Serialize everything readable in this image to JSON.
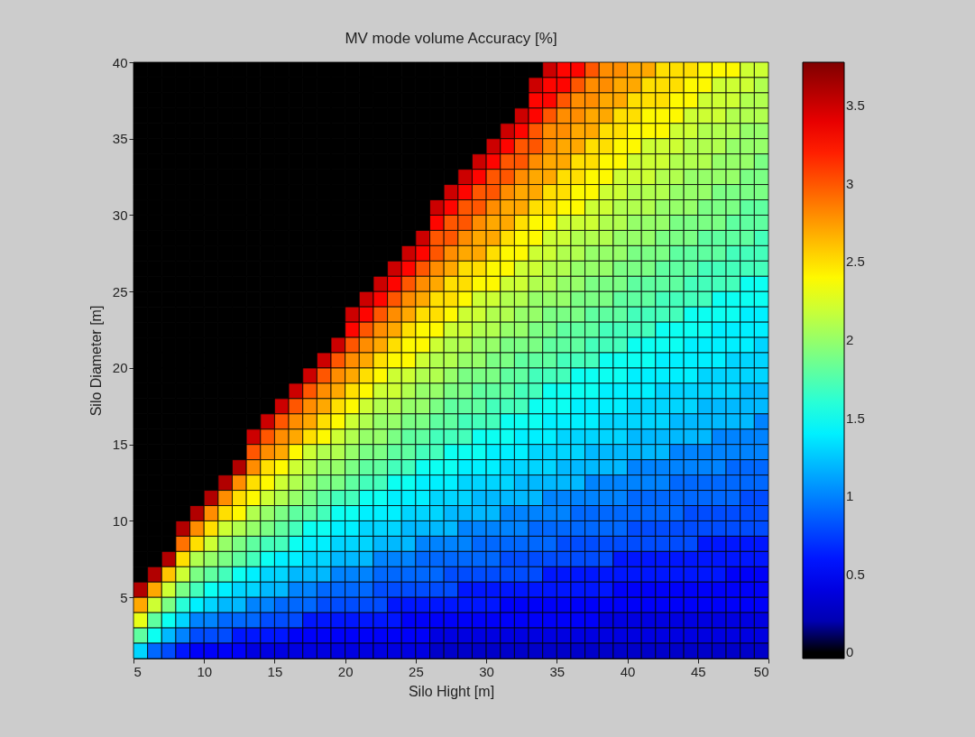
{
  "chart_data": {
    "type": "heatmap",
    "title": "MV mode volume Accuracy [%]",
    "xlabel": "Silo Hight [m]",
    "ylabel": "Silo Diameter [m]",
    "xlim": [
      5,
      50
    ],
    "ylim": [
      1,
      40
    ],
    "xticks": [
      5,
      10,
      15,
      20,
      25,
      30,
      35,
      40,
      45,
      50
    ],
    "yticks": [
      5,
      10,
      15,
      20,
      25,
      30,
      35,
      40
    ],
    "clim": [
      -0.04,
      3.78
    ],
    "cticks": [
      0,
      0.5,
      1,
      1.5,
      2,
      2.5,
      3,
      3.5
    ],
    "cells": [
      [
        0,
        0,
        0,
        0,
        0,
        0,
        0,
        0,
        0,
        0,
        0,
        0,
        0,
        0,
        0,
        0,
        0,
        0,
        0,
        0,
        0,
        0,
        0,
        0,
        0,
        0,
        0,
        0,
        0,
        3.5,
        3.3,
        3.3,
        3.0,
        2.8,
        2.8,
        2.7,
        2.7,
        2.5,
        2.5,
        2.5,
        2.4,
        2.4,
        2.4,
        2.2,
        2.2
      ],
      [
        0,
        0,
        0,
        0,
        0,
        0,
        0,
        0,
        0,
        0,
        0,
        0,
        0,
        0,
        0,
        0,
        0,
        0,
        0,
        0,
        0,
        0,
        0,
        0,
        0,
        0,
        0,
        0,
        3.5,
        3.3,
        3.3,
        3.0,
        2.8,
        2.8,
        2.7,
        2.7,
        2.5,
        2.5,
        2.5,
        2.4,
        2.4,
        2.2,
        2.2,
        2.2,
        2.1
      ],
      [
        0,
        0,
        0,
        0,
        0,
        0,
        0,
        0,
        0,
        0,
        0,
        0,
        0,
        0,
        0,
        0,
        0,
        0,
        0,
        0,
        0,
        0,
        0,
        0,
        0,
        0,
        0,
        0,
        3.3,
        3.3,
        3.0,
        2.8,
        2.8,
        2.7,
        2.7,
        2.5,
        2.5,
        2.5,
        2.4,
        2.4,
        2.2,
        2.2,
        2.2,
        2.1,
        2.1
      ],
      [
        0,
        0,
        0,
        0,
        0,
        0,
        0,
        0,
        0,
        0,
        0,
        0,
        0,
        0,
        0,
        0,
        0,
        0,
        0,
        0,
        0,
        0,
        0,
        0,
        0,
        0,
        0,
        3.5,
        3.3,
        3.0,
        2.8,
        2.8,
        2.7,
        2.7,
        2.5,
        2.5,
        2.4,
        2.4,
        2.4,
        2.2,
        2.2,
        2.2,
        2.1,
        2.1,
        2.1
      ],
      [
        0,
        0,
        0,
        0,
        0,
        0,
        0,
        0,
        0,
        0,
        0,
        0,
        0,
        0,
        0,
        0,
        0,
        0,
        0,
        0,
        0,
        0,
        0,
        0,
        0,
        0,
        3.5,
        3.3,
        3.0,
        2.8,
        2.8,
        2.7,
        2.7,
        2.5,
        2.5,
        2.4,
        2.4,
        2.4,
        2.2,
        2.2,
        2.1,
        2.1,
        2.1,
        2.0,
        2.0
      ],
      [
        0,
        0,
        0,
        0,
        0,
        0,
        0,
        0,
        0,
        0,
        0,
        0,
        0,
        0,
        0,
        0,
        0,
        0,
        0,
        0,
        0,
        0,
        0,
        0,
        0,
        3.5,
        3.3,
        3.0,
        3.0,
        2.8,
        2.7,
        2.7,
        2.5,
        2.5,
        2.4,
        2.4,
        2.2,
        2.2,
        2.2,
        2.1,
        2.1,
        2.1,
        2.0,
        2.0,
        2.0
      ],
      [
        0,
        0,
        0,
        0,
        0,
        0,
        0,
        0,
        0,
        0,
        0,
        0,
        0,
        0,
        0,
        0,
        0,
        0,
        0,
        0,
        0,
        0,
        0,
        0,
        3.5,
        3.3,
        3.0,
        3.0,
        2.8,
        2.7,
        2.7,
        2.5,
        2.5,
        2.4,
        2.4,
        2.2,
        2.2,
        2.2,
        2.1,
        2.1,
        2.1,
        2.0,
        2.0,
        2.0,
        1.9
      ],
      [
        0,
        0,
        0,
        0,
        0,
        0,
        0,
        0,
        0,
        0,
        0,
        0,
        0,
        0,
        0,
        0,
        0,
        0,
        0,
        0,
        0,
        0,
        0,
        3.5,
        3.3,
        3.0,
        3.0,
        2.8,
        2.7,
        2.7,
        2.5,
        2.5,
        2.4,
        2.4,
        2.2,
        2.2,
        2.2,
        2.1,
        2.1,
        2.0,
        2.0,
        2.0,
        2.0,
        1.9,
        1.9
      ],
      [
        0,
        0,
        0,
        0,
        0,
        0,
        0,
        0,
        0,
        0,
        0,
        0,
        0,
        0,
        0,
        0,
        0,
        0,
        0,
        0,
        0,
        0,
        3.5,
        3.3,
        3.0,
        3.0,
        2.8,
        2.7,
        2.7,
        2.5,
        2.5,
        2.4,
        2.4,
        2.2,
        2.2,
        2.1,
        2.1,
        2.1,
        2.0,
        2.0,
        2.0,
        1.9,
        1.9,
        1.9,
        1.9
      ],
      [
        0,
        0,
        0,
        0,
        0,
        0,
        0,
        0,
        0,
        0,
        0,
        0,
        0,
        0,
        0,
        0,
        0,
        0,
        0,
        0,
        0,
        3.5,
        3.3,
        3.0,
        3.0,
        2.8,
        2.7,
        2.7,
        2.5,
        2.5,
        2.4,
        2.4,
        2.2,
        2.2,
        2.1,
        2.1,
        2.1,
        2.0,
        2.0,
        2.0,
        1.9,
        1.9,
        1.9,
        1.8,
        1.8
      ],
      [
        0,
        0,
        0,
        0,
        0,
        0,
        0,
        0,
        0,
        0,
        0,
        0,
        0,
        0,
        0,
        0,
        0,
        0,
        0,
        0,
        0,
        3.3,
        3.0,
        3.0,
        2.8,
        2.7,
        2.7,
        2.5,
        2.4,
        2.4,
        2.2,
        2.2,
        2.2,
        2.1,
        2.1,
        2.0,
        2.0,
        2.0,
        1.9,
        1.9,
        1.9,
        1.9,
        1.8,
        1.8,
        1.8
      ],
      [
        0,
        0,
        0,
        0,
        0,
        0,
        0,
        0,
        0,
        0,
        0,
        0,
        0,
        0,
        0,
        0,
        0,
        0,
        0,
        0,
        3.5,
        3.0,
        3.0,
        2.8,
        2.7,
        2.7,
        2.5,
        2.4,
        2.4,
        2.2,
        2.2,
        2.1,
        2.1,
        2.1,
        2.0,
        2.0,
        2.0,
        1.9,
        1.9,
        1.9,
        1.8,
        1.8,
        1.8,
        1.8,
        1.7
      ],
      [
        0,
        0,
        0,
        0,
        0,
        0,
        0,
        0,
        0,
        0,
        0,
        0,
        0,
        0,
        0,
        0,
        0,
        0,
        0,
        3.5,
        3.3,
        3.0,
        2.8,
        2.7,
        2.7,
        2.5,
        2.4,
        2.4,
        2.2,
        2.2,
        2.1,
        2.1,
        2.0,
        2.0,
        2.0,
        1.9,
        1.9,
        1.9,
        1.8,
        1.8,
        1.8,
        1.8,
        1.7,
        1.7,
        1.7
      ],
      [
        0,
        0,
        0,
        0,
        0,
        0,
        0,
        0,
        0,
        0,
        0,
        0,
        0,
        0,
        0,
        0,
        0,
        0,
        3.5,
        3.3,
        3.0,
        2.8,
        2.7,
        2.5,
        2.5,
        2.4,
        2.4,
        2.2,
        2.2,
        2.1,
        2.1,
        2.0,
        2.0,
        2.0,
        1.9,
        1.9,
        1.9,
        1.8,
        1.8,
        1.8,
        1.7,
        1.7,
        1.7,
        1.7,
        1.7
      ],
      [
        0,
        0,
        0,
        0,
        0,
        0,
        0,
        0,
        0,
        0,
        0,
        0,
        0,
        0,
        0,
        0,
        0,
        3.5,
        3.3,
        3.0,
        2.8,
        2.7,
        2.5,
        2.5,
        2.4,
        2.4,
        2.2,
        2.2,
        2.1,
        2.1,
        2.0,
        2.0,
        1.9,
        1.9,
        1.9,
        1.8,
        1.8,
        1.8,
        1.8,
        1.7,
        1.7,
        1.7,
        1.7,
        1.5,
        1.5
      ],
      [
        0,
        0,
        0,
        0,
        0,
        0,
        0,
        0,
        0,
        0,
        0,
        0,
        0,
        0,
        0,
        0,
        3.5,
        3.3,
        3.0,
        2.8,
        2.7,
        2.5,
        2.5,
        2.4,
        2.2,
        2.2,
        2.1,
        2.1,
        2.0,
        2.0,
        2.0,
        1.9,
        1.9,
        1.9,
        1.8,
        1.8,
        1.8,
        1.7,
        1.7,
        1.7,
        1.7,
        1.5,
        1.5,
        1.5,
        1.5
      ],
      [
        0,
        0,
        0,
        0,
        0,
        0,
        0,
        0,
        0,
        0,
        0,
        0,
        0,
        0,
        0,
        3.5,
        3.3,
        3.0,
        2.8,
        2.7,
        2.5,
        2.5,
        2.4,
        2.2,
        2.2,
        2.1,
        2.1,
        2.0,
        2.0,
        1.9,
        1.9,
        1.9,
        1.8,
        1.8,
        1.8,
        1.7,
        1.7,
        1.7,
        1.7,
        1.5,
        1.5,
        1.5,
        1.5,
        1.4,
        1.4
      ],
      [
        0,
        0,
        0,
        0,
        0,
        0,
        0,
        0,
        0,
        0,
        0,
        0,
        0,
        0,
        0,
        3.3,
        3.0,
        2.8,
        2.7,
        2.5,
        2.4,
        2.4,
        2.2,
        2.2,
        2.1,
        2.1,
        2.0,
        2.0,
        1.9,
        1.9,
        1.8,
        1.8,
        1.8,
        1.7,
        1.7,
        1.7,
        1.7,
        1.5,
        1.5,
        1.5,
        1.5,
        1.4,
        1.4,
        1.4,
        1.4
      ],
      [
        0,
        0,
        0,
        0,
        0,
        0,
        0,
        0,
        0,
        0,
        0,
        0,
        0,
        0,
        3.5,
        3.0,
        2.8,
        2.7,
        2.5,
        2.4,
        2.4,
        2.2,
        2.1,
        2.1,
        2.0,
        2.0,
        1.9,
        1.9,
        1.9,
        1.8,
        1.8,
        1.8,
        1.7,
        1.7,
        1.7,
        1.5,
        1.5,
        1.5,
        1.5,
        1.4,
        1.4,
        1.4,
        1.4,
        1.4,
        1.3
      ],
      [
        0,
        0,
        0,
        0,
        0,
        0,
        0,
        0,
        0,
        0,
        0,
        0,
        0,
        3.5,
        3.0,
        2.8,
        2.7,
        2.5,
        2.4,
        2.4,
        2.2,
        2.1,
        2.1,
        2.0,
        2.0,
        1.9,
        1.9,
        1.8,
        1.8,
        1.8,
        1.7,
        1.7,
        1.7,
        1.5,
        1.5,
        1.5,
        1.5,
        1.4,
        1.4,
        1.4,
        1.4,
        1.4,
        1.3,
        1.3,
        1.3
      ],
      [
        0,
        0,
        0,
        0,
        0,
        0,
        0,
        0,
        0,
        0,
        0,
        0,
        3.5,
        3.0,
        2.8,
        2.7,
        2.5,
        2.4,
        2.2,
        2.2,
        2.1,
        2.1,
        2.0,
        1.9,
        1.9,
        1.9,
        1.8,
        1.8,
        1.7,
        1.7,
        1.7,
        1.5,
        1.5,
        1.5,
        1.5,
        1.4,
        1.4,
        1.4,
        1.4,
        1.4,
        1.3,
        1.3,
        1.3,
        1.3,
        1.3
      ],
      [
        0,
        0,
        0,
        0,
        0,
        0,
        0,
        0,
        0,
        0,
        0,
        3.5,
        3.0,
        2.8,
        2.7,
        2.5,
        2.4,
        2.2,
        2.2,
        2.1,
        2.0,
        2.0,
        1.9,
        1.9,
        1.8,
        1.8,
        1.8,
        1.7,
        1.7,
        1.5,
        1.5,
        1.5,
        1.5,
        1.4,
        1.4,
        1.4,
        1.4,
        1.3,
        1.3,
        1.3,
        1.3,
        1.3,
        1.3,
        1.2,
        1.2
      ],
      [
        0,
        0,
        0,
        0,
        0,
        0,
        0,
        0,
        0,
        0,
        3.5,
        3.0,
        2.8,
        2.7,
        2.5,
        2.4,
        2.2,
        2.1,
        2.1,
        2.0,
        2.0,
        1.9,
        1.8,
        1.8,
        1.8,
        1.7,
        1.7,
        1.7,
        1.5,
        1.5,
        1.5,
        1.4,
        1.4,
        1.4,
        1.4,
        1.3,
        1.3,
        1.3,
        1.3,
        1.3,
        1.2,
        1.2,
        1.2,
        1.2,
        1.2
      ],
      [
        0,
        0,
        0,
        0,
        0,
        0,
        0,
        0,
        0,
        3.5,
        3.0,
        2.8,
        2.7,
        2.5,
        2.4,
        2.2,
        2.1,
        2.0,
        2.0,
        1.9,
        1.9,
        1.8,
        1.8,
        1.7,
        1.7,
        1.7,
        1.5,
        1.5,
        1.5,
        1.4,
        1.4,
        1.4,
        1.4,
        1.3,
        1.3,
        1.3,
        1.3,
        1.3,
        1.2,
        1.2,
        1.2,
        1.2,
        1.2,
        1.2,
        1.0
      ],
      [
        0,
        0,
        0,
        0,
        0,
        0,
        0,
        0,
        3.5,
        3.0,
        2.8,
        2.7,
        2.5,
        2.4,
        2.2,
        2.1,
        2.0,
        2.0,
        1.9,
        1.8,
        1.8,
        1.7,
        1.7,
        1.7,
        1.5,
        1.5,
        1.5,
        1.4,
        1.4,
        1.4,
        1.3,
        1.3,
        1.3,
        1.3,
        1.3,
        1.2,
        1.2,
        1.2,
        1.2,
        1.2,
        1.2,
        1.0,
        1.0,
        1.0,
        1.0
      ],
      [
        0,
        0,
        0,
        0,
        0,
        0,
        0,
        0,
        3.0,
        2.8,
        2.7,
        2.4,
        2.2,
        2.1,
        2.1,
        2.0,
        1.9,
        1.9,
        1.8,
        1.8,
        1.7,
        1.7,
        1.5,
        1.5,
        1.5,
        1.4,
        1.4,
        1.4,
        1.3,
        1.3,
        1.3,
        1.3,
        1.2,
        1.2,
        1.2,
        1.2,
        1.2,
        1.2,
        1.0,
        1.0,
        1.0,
        1.0,
        1.0,
        1.0,
        1.0
      ],
      [
        0,
        0,
        0,
        0,
        0,
        0,
        0,
        3.6,
        2.8,
        2.5,
        2.4,
        2.2,
        2.1,
        2.0,
        2.0,
        1.9,
        1.8,
        1.8,
        1.7,
        1.7,
        1.5,
        1.5,
        1.5,
        1.4,
        1.4,
        1.4,
        1.3,
        1.3,
        1.3,
        1.3,
        1.2,
        1.2,
        1.2,
        1.2,
        1.2,
        1.0,
        1.0,
        1.0,
        1.0,
        1.0,
        1.0,
        1.0,
        0.9,
        0.9,
        0.9
      ],
      [
        0,
        0,
        0,
        0,
        0,
        0,
        3.6,
        2.8,
        2.5,
        2.4,
        2.2,
        2.1,
        2.0,
        1.9,
        1.9,
        1.8,
        1.7,
        1.7,
        1.5,
        1.5,
        1.4,
        1.4,
        1.4,
        1.3,
        1.3,
        1.3,
        1.3,
        1.2,
        1.2,
        1.2,
        1.2,
        1.2,
        1.0,
        1.0,
        1.0,
        1.0,
        1.0,
        1.0,
        0.9,
        0.9,
        0.9,
        0.9,
        0.9,
        0.9,
        0.9
      ],
      [
        0,
        0,
        0,
        0,
        0,
        3.6,
        2.8,
        2.5,
        2.4,
        2.2,
        2.1,
        2.0,
        1.9,
        1.8,
        1.7,
        1.7,
        1.5,
        1.5,
        1.4,
        1.4,
        1.4,
        1.3,
        1.3,
        1.3,
        1.2,
        1.2,
        1.2,
        1.2,
        1.2,
        1.0,
        1.0,
        1.0,
        1.0,
        1.0,
        1.0,
        0.9,
        0.9,
        0.9,
        0.9,
        0.9,
        0.9,
        0.9,
        0.9,
        0.8,
        0.8
      ],
      [
        0,
        0,
        0,
        0,
        3.6,
        2.8,
        2.5,
        2.4,
        2.1,
        2.0,
        1.9,
        1.8,
        1.8,
        1.7,
        1.5,
        1.5,
        1.4,
        1.4,
        1.4,
        1.3,
        1.3,
        1.3,
        1.2,
        1.2,
        1.2,
        1.2,
        1.0,
        1.0,
        1.0,
        1.0,
        1.0,
        0.9,
        0.9,
        0.9,
        0.9,
        0.9,
        0.9,
        0.9,
        0.9,
        0.8,
        0.8,
        0.8,
        0.8,
        0.8,
        0.8
      ],
      [
        0,
        0,
        0,
        3.6,
        2.8,
        2.5,
        2.2,
        2.1,
        2.0,
        1.9,
        1.8,
        1.7,
        1.5,
        1.5,
        1.4,
        1.4,
        1.3,
        1.3,
        1.3,
        1.2,
        1.2,
        1.2,
        1.2,
        1.0,
        1.0,
        1.0,
        1.0,
        1.0,
        0.9,
        0.9,
        0.9,
        0.9,
        0.9,
        0.9,
        0.9,
        0.8,
        0.8,
        0.8,
        0.8,
        0.8,
        0.8,
        0.8,
        0.8,
        0.8,
        0.8
      ],
      [
        0,
        0,
        0,
        2.9,
        2.5,
        2.2,
        2.0,
        1.9,
        1.8,
        1.7,
        1.7,
        1.5,
        1.4,
        1.4,
        1.3,
        1.3,
        1.3,
        1.2,
        1.2,
        1.2,
        1.0,
        1.0,
        1.0,
        1.0,
        0.9,
        0.9,
        0.9,
        0.9,
        0.9,
        0.9,
        0.8,
        0.8,
        0.8,
        0.8,
        0.8,
        0.8,
        0.8,
        0.8,
        0.8,
        0.8,
        0.6,
        0.6,
        0.6,
        0.6,
        0.6
      ],
      [
        0,
        0,
        3.6,
        2.5,
        2.1,
        2.0,
        1.9,
        1.8,
        1.7,
        1.5,
        1.4,
        1.4,
        1.3,
        1.3,
        1.2,
        1.2,
        1.2,
        1.0,
        1.0,
        1.0,
        0.9,
        0.9,
        0.9,
        0.9,
        0.9,
        0.9,
        0.8,
        0.8,
        0.8,
        0.8,
        0.8,
        0.8,
        0.8,
        0.8,
        0.6,
        0.6,
        0.6,
        0.6,
        0.6,
        0.6,
        0.6,
        0.6,
        0.6,
        0.6,
        0.6
      ],
      [
        0,
        3.6,
        2.6,
        2.2,
        1.9,
        1.8,
        1.7,
        1.5,
        1.4,
        1.3,
        1.3,
        1.2,
        1.2,
        1.2,
        1.0,
        1.0,
        1.0,
        0.9,
        0.9,
        0.9,
        0.9,
        0.9,
        0.8,
        0.8,
        0.8,
        0.8,
        0.8,
        0.8,
        0.8,
        0.6,
        0.6,
        0.6,
        0.6,
        0.6,
        0.6,
        0.6,
        0.6,
        0.6,
        0.6,
        0.6,
        0.6,
        0.6,
        0.5,
        0.5,
        0.5
      ],
      [
        3.6,
        2.7,
        2.2,
        1.9,
        1.7,
        1.5,
        1.4,
        1.3,
        1.3,
        1.2,
        1.2,
        1.0,
        1.0,
        0.9,
        0.9,
        0.9,
        0.9,
        0.8,
        0.8,
        0.8,
        0.8,
        0.8,
        0.8,
        0.6,
        0.6,
        0.6,
        0.6,
        0.6,
        0.6,
        0.6,
        0.6,
        0.6,
        0.6,
        0.6,
        0.5,
        0.5,
        0.5,
        0.5,
        0.5,
        0.5,
        0.5,
        0.5,
        0.5,
        0.5,
        0.5
      ],
      [
        2.7,
        2.2,
        1.9,
        1.6,
        1.4,
        1.3,
        1.2,
        1.2,
        1.0,
        1.0,
        0.9,
        0.9,
        0.9,
        0.8,
        0.8,
        0.8,
        0.8,
        0.8,
        0.6,
        0.6,
        0.6,
        0.6,
        0.6,
        0.6,
        0.6,
        0.6,
        0.5,
        0.5,
        0.5,
        0.5,
        0.5,
        0.5,
        0.5,
        0.5,
        0.5,
        0.5,
        0.5,
        0.5,
        0.5,
        0.5,
        0.5,
        0.5,
        0.5,
        0.5,
        0.5
      ],
      [
        2.3,
        1.8,
        1.5,
        1.3,
        1.0,
        1.0,
        0.9,
        0.9,
        0.9,
        0.8,
        0.8,
        0.8,
        0.6,
        0.6,
        0.6,
        0.6,
        0.6,
        0.6,
        0.6,
        0.5,
        0.5,
        0.5,
        0.5,
        0.5,
        0.5,
        0.5,
        0.5,
        0.5,
        0.5,
        0.5,
        0.5,
        0.5,
        0.5,
        0.4,
        0.4,
        0.4,
        0.4,
        0.4,
        0.4,
        0.4,
        0.4,
        0.4,
        0.4,
        0.4,
        0.4
      ],
      [
        1.8,
        1.5,
        1.2,
        1.0,
        0.8,
        0.8,
        0.8,
        0.6,
        0.6,
        0.6,
        0.6,
        0.5,
        0.5,
        0.5,
        0.5,
        0.5,
        0.5,
        0.5,
        0.5,
        0.5,
        0.5,
        0.4,
        0.4,
        0.4,
        0.4,
        0.4,
        0.4,
        0.4,
        0.4,
        0.4,
        0.4,
        0.4,
        0.4,
        0.4,
        0.4,
        0.4,
        0.4,
        0.4,
        0.4,
        0.4,
        0.4,
        0.4,
        0.4,
        0.4,
        0.4
      ],
      [
        1.3,
        0.9,
        0.8,
        0.6,
        0.5,
        0.5,
        0.5,
        0.5,
        0.4,
        0.4,
        0.4,
        0.4,
        0.4,
        0.4,
        0.4,
        0.4,
        0.4,
        0.4,
        0.4,
        0.4,
        0.4,
        0.3,
        0.3,
        0.3,
        0.3,
        0.3,
        0.3,
        0.3,
        0.3,
        0.3,
        0.3,
        0.3,
        0.3,
        0.3,
        0.3,
        0.3,
        0.3,
        0.3,
        0.3,
        0.3,
        0.3,
        0.3,
        0.3,
        0.3,
        0.3
      ]
    ]
  }
}
